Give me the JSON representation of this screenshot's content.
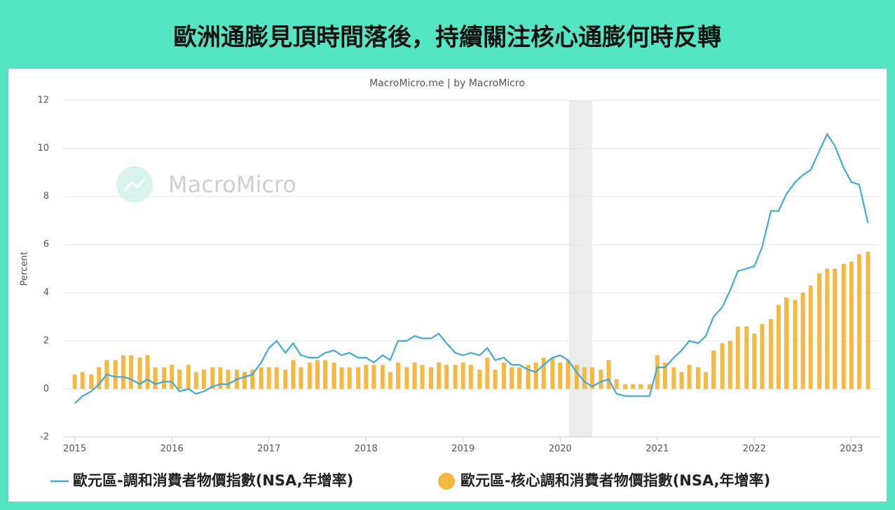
{
  "chart_data": {
    "type": "combo",
    "title": "歐洲通膨見頂時間落後，持續關注核心通膨何時反轉",
    "subtitle": "MacroMicro.me | by MacroMicro",
    "watermark": "MacroMicro",
    "y_label": "Percent",
    "x": [
      2015,
      2015.08,
      2015.17,
      2015.25,
      2015.33,
      2015.42,
      2015.5,
      2015.58,
      2015.67,
      2015.75,
      2015.83,
      2015.92,
      2016,
      2016.08,
      2016.17,
      2016.25,
      2016.33,
      2016.42,
      2016.5,
      2016.58,
      2016.67,
      2016.75,
      2016.83,
      2016.92,
      2017,
      2017.08,
      2017.17,
      2017.25,
      2017.33,
      2017.42,
      2017.5,
      2017.58,
      2017.67,
      2017.75,
      2017.83,
      2017.92,
      2018,
      2018.08,
      2018.17,
      2018.25,
      2018.33,
      2018.42,
      2018.5,
      2018.58,
      2018.67,
      2018.75,
      2018.83,
      2018.92,
      2019,
      2019.08,
      2019.17,
      2019.25,
      2019.33,
      2019.42,
      2019.5,
      2019.58,
      2019.67,
      2019.75,
      2019.83,
      2019.92,
      2020,
      2020.08,
      2020.17,
      2020.25,
      2020.33,
      2020.42,
      2020.5,
      2020.58,
      2020.67,
      2020.75,
      2020.83,
      2020.92,
      2021,
      2021.08,
      2021.17,
      2021.25,
      2021.33,
      2021.42,
      2021.5,
      2021.58,
      2021.67,
      2021.75,
      2021.83,
      2021.92,
      2022,
      2022.08,
      2022.17,
      2022.25,
      2022.33,
      2022.42,
      2022.5,
      2022.58,
      2022.67,
      2022.75,
      2022.83,
      2022.92,
      2023,
      2023.08,
      2023.17
    ],
    "series": [
      {
        "name": "歐元區-調和消費者物價指數(NSA,年增率)",
        "type": "line",
        "color": "#41a9d8",
        "values": [
          -0.6,
          -0.3,
          -0.1,
          0.2,
          0.6,
          0.5,
          0.5,
          0.4,
          0.2,
          0.4,
          0.2,
          0.3,
          0.3,
          -0.1,
          0.0,
          -0.2,
          -0.1,
          0.1,
          0.2,
          0.2,
          0.4,
          0.5,
          0.6,
          1.1,
          1.7,
          2.0,
          1.5,
          1.9,
          1.4,
          1.3,
          1.3,
          1.5,
          1.6,
          1.4,
          1.5,
          1.3,
          1.3,
          1.1,
          1.4,
          1.2,
          2.0,
          2.0,
          2.2,
          2.1,
          2.1,
          2.3,
          1.9,
          1.5,
          1.4,
          1.5,
          1.4,
          1.7,
          1.2,
          1.3,
          1.0,
          1.0,
          0.8,
          0.7,
          1.0,
          1.3,
          1.4,
          1.2,
          0.7,
          0.3,
          0.1,
          0.3,
          0.4,
          -0.2,
          -0.3,
          -0.3,
          -0.3,
          -0.3,
          0.9,
          0.9,
          1.3,
          1.6,
          2.0,
          1.9,
          2.2,
          3.0,
          3.4,
          4.1,
          4.9,
          5.0,
          5.1,
          5.9,
          7.4,
          7.4,
          8.1,
          8.6,
          8.9,
          9.1,
          9.9,
          10.6,
          10.1,
          9.2,
          8.6,
          8.5,
          6.9
        ]
      },
      {
        "name": "歐元區-核心調和消費者物價指數(NSA,年增率)",
        "type": "bar",
        "color": "#f5b942",
        "values": [
          0.6,
          0.7,
          0.6,
          0.9,
          1.2,
          1.2,
          1.4,
          1.4,
          1.3,
          1.4,
          0.9,
          0.9,
          1.0,
          0.8,
          1.0,
          0.7,
          0.8,
          0.9,
          0.9,
          0.8,
          0.8,
          0.7,
          0.8,
          0.9,
          0.9,
          0.9,
          0.8,
          1.2,
          0.9,
          1.1,
          1.2,
          1.2,
          1.1,
          0.9,
          0.9,
          0.9,
          1.0,
          1.0,
          1.0,
          0.7,
          1.1,
          0.9,
          1.1,
          1.0,
          0.9,
          1.1,
          1.0,
          1.0,
          1.1,
          1.0,
          0.8,
          1.3,
          0.8,
          1.1,
          0.9,
          0.9,
          1.0,
          1.1,
          1.3,
          1.3,
          1.1,
          1.2,
          1.0,
          0.9,
          0.9,
          0.8,
          1.2,
          0.4,
          0.2,
          0.2,
          0.2,
          0.2,
          1.4,
          1.1,
          0.9,
          0.7,
          1.0,
          0.9,
          0.7,
          1.6,
          1.9,
          2.0,
          2.6,
          2.6,
          2.3,
          2.7,
          2.9,
          3.5,
          3.8,
          3.7,
          4.0,
          4.3,
          4.8,
          5.0,
          5.0,
          5.2,
          5.3,
          5.6,
          5.7
        ]
      }
    ],
    "shaded_xrange": [
      2020.09,
      2020.33
    ],
    "xlim": [
      2014.88,
      2023.29
    ],
    "xticks": [
      2015,
      2016,
      2017,
      2018,
      2019,
      2020,
      2021,
      2022,
      2023
    ],
    "ylim": [
      -2,
      12
    ],
    "yticks": [
      -2,
      0,
      2,
      4,
      6,
      8,
      10,
      12
    ],
    "grid": true
  }
}
